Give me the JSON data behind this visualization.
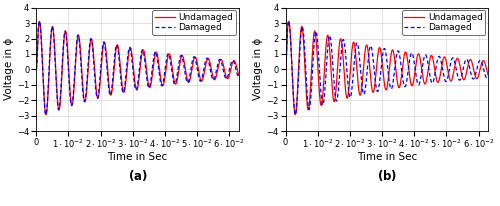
{
  "xlim": [
    0,
    0.063
  ],
  "ylim": [
    -4,
    4
  ],
  "xlabel": "Time in Sec",
  "ylabel": "Voltage in ϕ",
  "legend_undamaged": "Undamaged",
  "legend_damaged": "Damaged",
  "color_undamaged": "red",
  "color_damaged": "blue",
  "label_a": "(a)",
  "label_b": "(b)",
  "label_fontsize": 7.5,
  "tick_fontsize": 6.0,
  "legend_fontsize": 6.5,
  "freq_und": 248,
  "freq_dam_a": 249.5,
  "freq_dam_b": 235,
  "decay": 28,
  "amplitude": 3.2,
  "phase_dam_a": 0.04,
  "phase_dam_b": 0.18,
  "t_max": 0.063,
  "n_points": 3000,
  "xticks": [
    0,
    0.01,
    0.02,
    0.03,
    0.04,
    0.05,
    0.06
  ],
  "yticks": [
    -4,
    -3,
    -2,
    -1,
    0,
    1,
    2,
    3,
    4
  ]
}
